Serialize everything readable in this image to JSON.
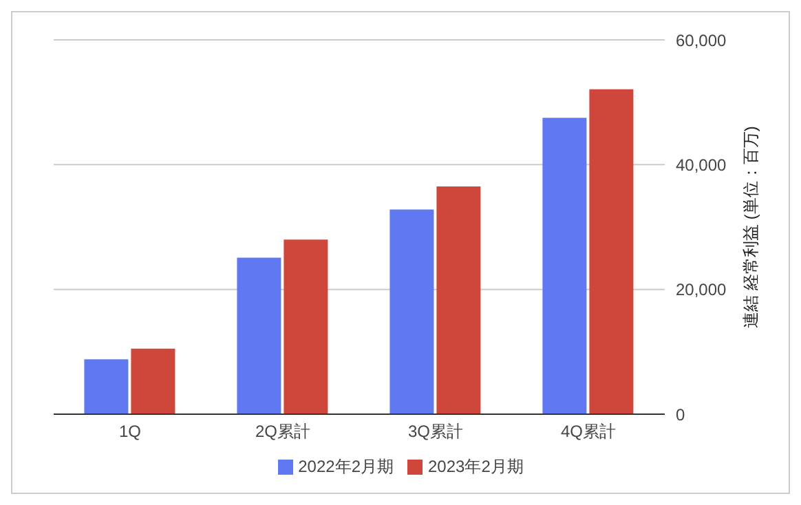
{
  "chart_data": {
    "type": "bar",
    "categories": [
      "1Q",
      "2Q累計",
      "3Q累計",
      "4Q累計"
    ],
    "series": [
      {
        "name": "2022年2月期",
        "color": "#6079f0",
        "values": [
          8800,
          25100,
          32800,
          47500
        ]
      },
      {
        "name": "2023年2月期",
        "color": "#cf473b",
        "values": [
          10500,
          28000,
          36500,
          52100
        ]
      }
    ],
    "ylabel": "連結 経常利益 (単位：百万)",
    "ylim": [
      0,
      60000
    ],
    "yticks": [
      0,
      {
        "value": 20000,
        "label": "20,000"
      },
      {
        "value": 40000,
        "label": "40,000"
      },
      {
        "value": 60000,
        "label": "60,000"
      }
    ],
    "grid": "y",
    "legend": "bottom"
  }
}
